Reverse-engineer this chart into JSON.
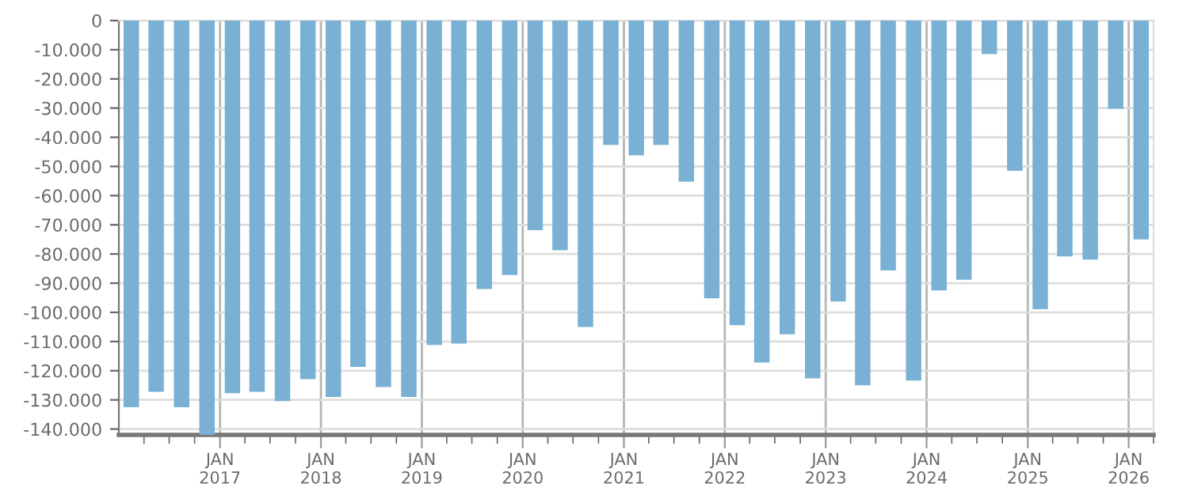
{
  "chart_data": {
    "type": "bar",
    "x": [
      "2016-02-15",
      "2016-05-15",
      "2016-08-15",
      "2016-11-15",
      "2017-02-15",
      "2017-05-15",
      "2017-08-15",
      "2017-11-15",
      "2018-02-15",
      "2018-05-15",
      "2018-08-15",
      "2018-11-15",
      "2019-02-15",
      "2019-05-15",
      "2019-08-15",
      "2019-11-15",
      "2020-02-15",
      "2020-05-15",
      "2020-08-15",
      "2020-11-15",
      "2021-02-15",
      "2021-05-15",
      "2021-08-15",
      "2021-11-15",
      "2022-02-15",
      "2022-05-15",
      "2022-08-15",
      "2022-11-15",
      "2023-02-15",
      "2023-05-15",
      "2023-08-15",
      "2023-11-15",
      "2024-02-15",
      "2024-05-15",
      "2024-08-15",
      "2024-11-15",
      "2025-02-15",
      "2025-05-15",
      "2025-08-15",
      "2025-11-15",
      "2026-02-15"
    ],
    "values": [
      -132500,
      -127200,
      -132500,
      -142000,
      -127700,
      -127200,
      -130400,
      -122900,
      -129000,
      -118700,
      -125600,
      -129000,
      -111200,
      -110700,
      -92000,
      -87200,
      -71800,
      -78700,
      -105000,
      -42600,
      -46200,
      -42600,
      -55200,
      -95200,
      -104400,
      -117200,
      -107500,
      -122600,
      -96300,
      -125000,
      -85600,
      -123400,
      -92500,
      -88800,
      -11500,
      -51500,
      -98900,
      -80800,
      -81900,
      -30200,
      -75000
    ],
    "color": "#79b0d3",
    "xlim": [
      "2016-01-01",
      "2026-04-01"
    ],
    "ylim": [
      -142000,
      0
    ],
    "yticks": [
      {
        "value": 0,
        "label": "0"
      },
      {
        "value": -10000,
        "label": "-10.000"
      },
      {
        "value": -20000,
        "label": "-20.000"
      },
      {
        "value": -30000,
        "label": "-30.000"
      },
      {
        "value": -40000,
        "label": "-40.000"
      },
      {
        "value": -50000,
        "label": "-50.000"
      },
      {
        "value": -60000,
        "label": "-60.000"
      },
      {
        "value": -70000,
        "label": "-70.000"
      },
      {
        "value": -80000,
        "label": "-80.000"
      },
      {
        "value": -90000,
        "label": "-90.000"
      },
      {
        "value": -100000,
        "label": "-100.000"
      },
      {
        "value": -110000,
        "label": "-110.000"
      },
      {
        "value": -120000,
        "label": "-120.000"
      },
      {
        "value": -130000,
        "label": "-130.000"
      },
      {
        "value": -140000,
        "label": "-140.000"
      }
    ],
    "xticks": [
      {
        "value": "2017-01-01",
        "label": "JAN\n2017"
      },
      {
        "value": "2018-01-01",
        "label": "JAN\n2018"
      },
      {
        "value": "2019-01-01",
        "label": "JAN\n2019"
      },
      {
        "value": "2020-01-01",
        "label": "JAN\n2020"
      },
      {
        "value": "2021-01-01",
        "label": "JAN\n2021"
      },
      {
        "value": "2022-01-01",
        "label": "JAN\n2022"
      },
      {
        "value": "2023-01-01",
        "label": "JAN\n2023"
      },
      {
        "value": "2024-01-01",
        "label": "JAN\n2024"
      },
      {
        "value": "2025-01-01",
        "label": "JAN\n2025"
      },
      {
        "value": "2026-01-01",
        "label": "JAN\n2026"
      }
    ],
    "grid": true
  }
}
